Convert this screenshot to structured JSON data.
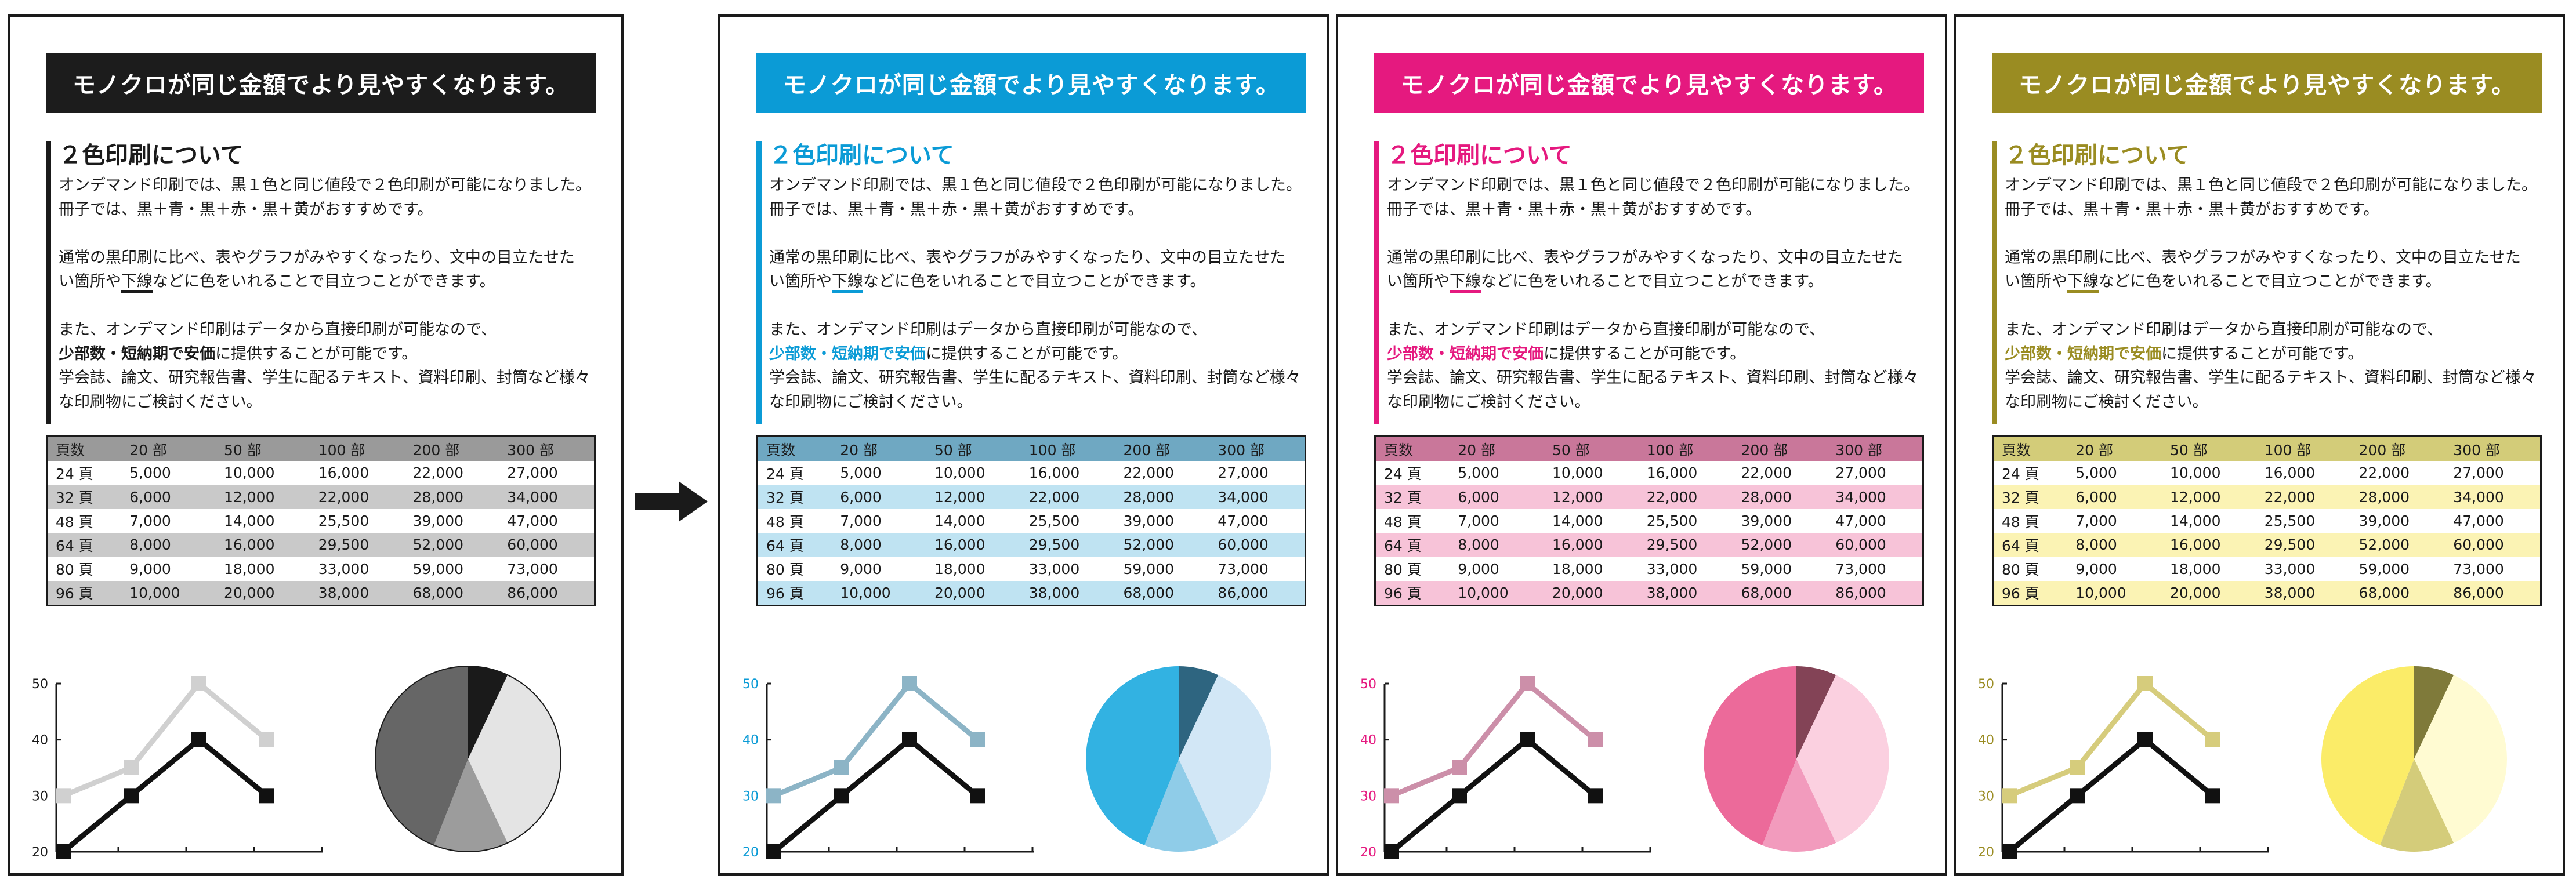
{
  "arrow_icon": "right-arrow-icon",
  "panels": [
    {
      "variant": "mono",
      "colors": {
        "title_bg": "#1c1c1c",
        "accent": "#1a1a1a",
        "heading": "#1a1a1a",
        "emphasis": "#1a1a1a",
        "underline": "#1a1a1a",
        "table_header": "#9a9a9a",
        "table_alt": "#c9c9c9",
        "line_light": "#d0d0d0",
        "line_dark": "#111111",
        "pie": [
          "#1a1a1a",
          "#e4e4e4",
          "#9c9c9c",
          "#666666"
        ]
      }
    },
    {
      "variant": "blue",
      "colors": {
        "title_bg": "#0b9bd6",
        "accent": "#0b9bd6",
        "heading": "#0b9bd6",
        "emphasis": "#0b9bd6",
        "underline": "#0b9bd6",
        "table_header": "#6fa8c2",
        "table_alt": "#bfe3f2",
        "line_light": "#8cb4c6",
        "line_dark": "#111111",
        "pie": [
          "#2e6580",
          "#d2e7f6",
          "#8fcce8",
          "#32b2e2"
        ]
      }
    },
    {
      "variant": "magenta",
      "colors": {
        "title_bg": "#e5197f",
        "accent": "#e5197f",
        "heading": "#e5197f",
        "emphasis": "#e5197f",
        "underline": "#e5197f",
        "table_header": "#c9779a",
        "table_alt": "#f7c3d8",
        "line_light": "#cc8fa9",
        "line_dark": "#111111",
        "pie": [
          "#834356",
          "#fbd0e0",
          "#f29bbd",
          "#ec6a9a"
        ]
      }
    },
    {
      "variant": "olive",
      "colors": {
        "title_bg": "#9a8c22",
        "accent": "#9a8c22",
        "heading": "#9a8c22",
        "emphasis": "#9a8c22",
        "underline": "#9a8c22",
        "table_header": "#d3cc79",
        "table_alt": "#fbf3b4",
        "line_light": "#d6cc7c",
        "line_dark": "#111111",
        "pie": [
          "#7f7a3a",
          "#fffbd2",
          "#d4cc7a",
          "#fbec68"
        ]
      }
    }
  ],
  "content": {
    "title": "モノクロが同じ金額でより見やすくなります。",
    "heading": "２色印刷について",
    "p1_l1": "オンデマンド印刷では、黒１色と同じ値段で２色印刷が可能になりました。",
    "p1_l2": "冊子では、黒＋青・黒＋赤・黒＋黄がおすすめです。",
    "p2_l1": "通常の黒印刷に比べ、表やグラフがみやすくなったり、文中の目立たせた",
    "p2_l2a": "い箇所や",
    "p2_l2b": "下線",
    "p2_l2c": "などに色をいれることで目立つことができます。",
    "p3_l1": "また、オンデマンド印刷はデータから直接印刷が可能なので、",
    "p3_l2a": "少部数・短納期で安価",
    "p3_l2b": "に提供することが可能です。",
    "p3_l3": "学会誌、論文、研究報告書、学生に配るテキスト、資料印刷、封筒など様々",
    "p3_l4": "な印刷物にご検討ください。"
  },
  "table": {
    "headers": [
      "頁数",
      "20 部",
      "50 部",
      "100 部",
      "200 部",
      "300 部"
    ],
    "rows": [
      [
        "24 頁",
        "5,000",
        "10,000",
        "16,000",
        "22,000",
        "27,000"
      ],
      [
        "32 頁",
        "6,000",
        "12,000",
        "22,000",
        "28,000",
        "34,000"
      ],
      [
        "48 頁",
        "7,000",
        "14,000",
        "25,500",
        "39,000",
        "47,000"
      ],
      [
        "64 頁",
        "8,000",
        "16,000",
        "29,500",
        "52,000",
        "60,000"
      ],
      [
        "80 頁",
        "9,000",
        "18,000",
        "33,000",
        "59,000",
        "73,000"
      ],
      [
        "96 頁",
        "10,000",
        "20,000",
        "38,000",
        "68,000",
        "86,000"
      ]
    ]
  },
  "chart_data": {
    "line": {
      "type": "line",
      "y_ticks": [
        "50",
        "40",
        "30",
        "20"
      ],
      "ylim": [
        20,
        50
      ],
      "series": [
        {
          "values": [
            30,
            35,
            50,
            40
          ]
        },
        {
          "values": [
            20,
            30,
            40,
            30
          ]
        }
      ]
    },
    "pie": {
      "type": "pie",
      "values": [
        7,
        36,
        13,
        44
      ]
    }
  }
}
